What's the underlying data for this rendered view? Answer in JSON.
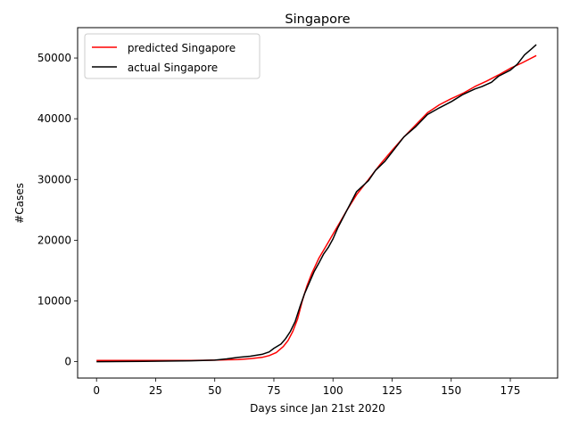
{
  "chart_data": {
    "type": "line",
    "title": "Singapore",
    "xlabel": "Days since Jan 21st 2020",
    "ylabel": "#Cases",
    "xlim": [
      -8,
      195
    ],
    "ylim": [
      -2700,
      55000
    ],
    "xticks": [
      0,
      25,
      50,
      75,
      100,
      125,
      150,
      175
    ],
    "yticks": [
      0,
      10000,
      20000,
      30000,
      40000,
      50000
    ],
    "legend_position": "upper-left",
    "grid": false,
    "series": [
      {
        "name": " predicted Singapore",
        "color": "#ff0000",
        "points": [
          [
            0,
            200
          ],
          [
            25,
            200
          ],
          [
            40,
            200
          ],
          [
            50,
            250
          ],
          [
            60,
            350
          ],
          [
            65,
            500
          ],
          [
            70,
            700
          ],
          [
            73,
            1000
          ],
          [
            76,
            1500
          ],
          [
            79,
            2500
          ],
          [
            81,
            3500
          ],
          [
            83,
            5000
          ],
          [
            85,
            7000
          ],
          [
            87,
            10000
          ],
          [
            89,
            12500
          ],
          [
            91,
            14500
          ],
          [
            94,
            17000
          ],
          [
            97,
            19000
          ],
          [
            100,
            21000
          ],
          [
            103,
            23000
          ],
          [
            106,
            25000
          ],
          [
            110,
            27500
          ],
          [
            115,
            30000
          ],
          [
            120,
            32500
          ],
          [
            125,
            34800
          ],
          [
            130,
            37000
          ],
          [
            135,
            39000
          ],
          [
            140,
            41000
          ],
          [
            145,
            42300
          ],
          [
            150,
            43300
          ],
          [
            155,
            44200
          ],
          [
            160,
            45300
          ],
          [
            165,
            46200
          ],
          [
            170,
            47200
          ],
          [
            175,
            48300
          ],
          [
            180,
            49200
          ],
          [
            186,
            50400
          ]
        ]
      },
      {
        "name": " actual Singapore",
        "color": "#000000",
        "points": [
          [
            0,
            0
          ],
          [
            20,
            50
          ],
          [
            40,
            150
          ],
          [
            50,
            250
          ],
          [
            55,
            450
          ],
          [
            60,
            700
          ],
          [
            65,
            900
          ],
          [
            70,
            1200
          ],
          [
            73,
            1600
          ],
          [
            75,
            2200
          ],
          [
            78,
            2900
          ],
          [
            80,
            3800
          ],
          [
            82,
            5000
          ],
          [
            84,
            6600
          ],
          [
            86,
            9000
          ],
          [
            88,
            11200
          ],
          [
            90,
            13000
          ],
          [
            92,
            14800
          ],
          [
            94,
            16200
          ],
          [
            96,
            17700
          ],
          [
            98,
            18800
          ],
          [
            100,
            20200
          ],
          [
            102,
            22000
          ],
          [
            104,
            23500
          ],
          [
            106,
            25000
          ],
          [
            108,
            26500
          ],
          [
            110,
            28000
          ],
          [
            115,
            29800
          ],
          [
            118,
            31500
          ],
          [
            122,
            33000
          ],
          [
            126,
            35000
          ],
          [
            130,
            37000
          ],
          [
            135,
            38700
          ],
          [
            140,
            40700
          ],
          [
            145,
            41800
          ],
          [
            150,
            42800
          ],
          [
            155,
            44000
          ],
          [
            160,
            44900
          ],
          [
            163,
            45300
          ],
          [
            167,
            46000
          ],
          [
            170,
            47000
          ],
          [
            175,
            48000
          ],
          [
            178,
            49000
          ],
          [
            181,
            50500
          ],
          [
            184,
            51500
          ],
          [
            186,
            52200
          ]
        ]
      }
    ]
  }
}
